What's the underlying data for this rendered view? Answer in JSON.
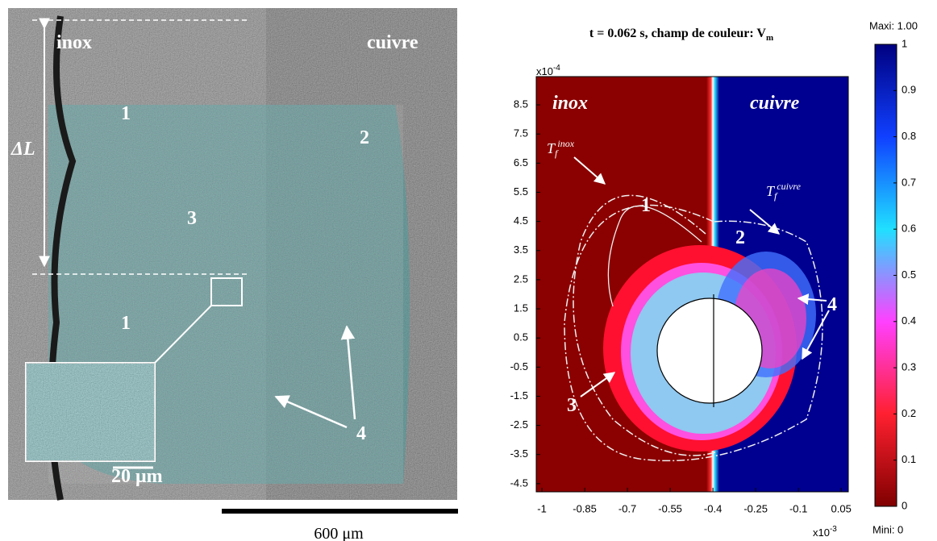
{
  "left_panel": {
    "material_left": "inox",
    "material_right": "cuivre",
    "delta_l": "ΔL",
    "zone_labels": [
      "1",
      "2",
      "3",
      "1",
      "4"
    ],
    "inset_scale": "20 μm",
    "scale_bar": "600 μm"
  },
  "right_panel": {
    "title": "t = 0.062 s, champ de couleur: V",
    "title_subscript": "m",
    "region_labels": [
      "inox",
      "cuivre"
    ],
    "zone_labels": [
      "1",
      "2",
      "3",
      "4"
    ],
    "contour_labels": [
      {
        "base": "T",
        "sub": "f",
        "sup": "inox"
      },
      {
        "base": "T",
        "sub": "f",
        "sup": "cuivre"
      }
    ],
    "y_exponent": {
      "base": "x10",
      "power": "-4"
    },
    "x_exponent": {
      "base": "x10",
      "power": "-3"
    },
    "xlim": [
      -1.02,
      0.075
    ],
    "ylim": [
      -4.78,
      9.47
    ],
    "xticks": [
      -1,
      -0.85,
      -0.7,
      -0.55,
      -0.4,
      -0.25,
      -0.1,
      0.05
    ],
    "yticks": [
      8.5,
      7.5,
      6.5,
      5.5,
      4.5,
      3.5,
      2.5,
      1.5,
      0.5,
      -0.5,
      -1.5,
      -2.5,
      -3.5,
      -4.5
    ],
    "colorbar": {
      "max_label": "Maxi: 1.00",
      "min_label": "Mini: 0",
      "lim": [
        0,
        1
      ],
      "ticks": [
        1,
        0.9,
        0.8,
        0.7,
        0.6,
        0.5,
        0.4,
        0.3,
        0.2,
        0.1,
        0
      ]
    }
  }
}
